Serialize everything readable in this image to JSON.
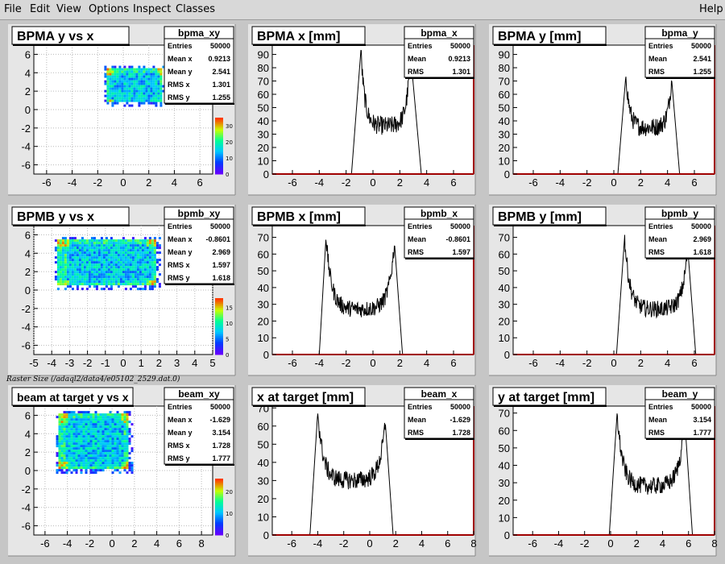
{
  "menu": {
    "file": "File",
    "edit": "Edit",
    "view": "View",
    "options": "Options",
    "inspect": "Inspect",
    "classes": "Classes",
    "help": "Help"
  },
  "caption": "Raster Size (/adaql2/data4/e05102_2529.dat.0)",
  "stat_labels": {
    "entries": "Entries",
    "mean_x": "Mean x",
    "mean_y": "Mean y",
    "rms_x": "RMS x",
    "rms_y": "RMS y",
    "mean": "Mean",
    "rms": "RMS"
  },
  "colors": {
    "pad_bg": "#e6e6e6",
    "frame_bg": "#ffffff",
    "axis_red": "#a00000",
    "hist": "#000000"
  },
  "chart_data": [
    {
      "type": "heatmap",
      "title": "BPMA y vs x",
      "stats_name": "bpma_xy",
      "stats": {
        "entries": "50000",
        "mean_x": "0.9213",
        "mean_y": "2.541",
        "rms_x": "1.301",
        "rms_y": "1.255"
      },
      "xlim": [
        -7,
        7
      ],
      "ylim": [
        -7,
        7
      ],
      "xticks": [
        -6,
        -4,
        -2,
        0,
        2,
        4,
        6
      ],
      "yticks": [
        -6,
        -4,
        -2,
        0,
        2,
        4,
        6
      ],
      "region": {
        "x": [
          -1.3,
          3.2
        ],
        "y": [
          0.6,
          4.5
        ]
      },
      "zticks": [
        0,
        10,
        20,
        30
      ],
      "zmax": 35,
      "grid": true
    },
    {
      "type": "histogram",
      "title": "BPMA x [mm]",
      "stats_name": "bpma_x",
      "stats": {
        "entries": "50000",
        "mean": "0.9213",
        "rms": "1.301"
      },
      "xlim": [
        -7.5,
        7.5
      ],
      "ylim": [
        0,
        97
      ],
      "xticks": [
        -6,
        -4,
        -2,
        0,
        2,
        4,
        6
      ],
      "yticks": [
        0,
        10,
        20,
        30,
        40,
        50,
        60,
        70,
        80,
        90
      ],
      "profile": {
        "rise": [
          -1.6,
          -0.9
        ],
        "fall": [
          2.8,
          3.6
        ],
        "peak_left": 93,
        "peak_right": 90,
        "valley": 36,
        "noise": 7
      }
    },
    {
      "type": "histogram",
      "title": "BPMA y [mm]",
      "stats_name": "bpma_y",
      "stats": {
        "entries": "50000",
        "mean": "2.541",
        "rms": "1.255"
      },
      "xlim": [
        -7.5,
        7.5
      ],
      "ylim": [
        0,
        97
      ],
      "xticks": [
        -6,
        -4,
        -2,
        0,
        2,
        4,
        6
      ],
      "yticks": [
        0,
        10,
        20,
        30,
        40,
        50,
        60,
        70,
        80,
        90
      ],
      "profile": {
        "rise": [
          0.3,
          0.9
        ],
        "fall": [
          4.3,
          4.9
        ],
        "peak_left": 75,
        "peak_right": 72,
        "valley": 35,
        "noise": 7
      }
    },
    {
      "type": "heatmap",
      "title": "BPMB y vs x",
      "stats_name": "bpmb_xy",
      "stats": {
        "entries": "50000",
        "mean_x": "-0.8601",
        "mean_y": "2.969",
        "rms_x": "1.597",
        "rms_y": "1.618"
      },
      "xlim": [
        -5,
        5
      ],
      "ylim": [
        -7,
        7
      ],
      "xticks": [
        -5,
        -4,
        -3,
        -2,
        -1,
        0,
        1,
        2,
        3,
        4,
        5
      ],
      "yticks": [
        -6,
        -4,
        -2,
        0,
        2,
        4,
        6
      ],
      "region": {
        "x": [
          -3.7,
          1.9
        ],
        "y": [
          0.4,
          5.5
        ]
      },
      "zticks": [
        0,
        5,
        10,
        15
      ],
      "zmax": 18,
      "grid": true
    },
    {
      "type": "histogram",
      "title": "BPMB x [mm]",
      "stats_name": "bpmb_x",
      "stats": {
        "entries": "50000",
        "mean": "-0.8601",
        "rms": "1.597"
      },
      "xlim": [
        -7.5,
        7.5
      ],
      "ylim": [
        0,
        77
      ],
      "xticks": [
        -6,
        -4,
        -2,
        0,
        2,
        4,
        6
      ],
      "yticks": [
        0,
        10,
        20,
        30,
        40,
        50,
        60,
        70
      ],
      "profile": {
        "rise": [
          -4.0,
          -3.5
        ],
        "fall": [
          1.6,
          2.2
        ],
        "peak_left": 70,
        "peak_right": 67,
        "valley": 27,
        "noise": 5
      }
    },
    {
      "type": "histogram",
      "title": "BPMB y [mm]",
      "stats_name": "bpmb_y",
      "stats": {
        "entries": "50000",
        "mean": "2.969",
        "rms": "1.618"
      },
      "xlim": [
        -7.5,
        7.5
      ],
      "ylim": [
        0,
        77
      ],
      "xticks": [
        -6,
        -4,
        -2,
        0,
        2,
        4,
        6
      ],
      "yticks": [
        0,
        10,
        20,
        30,
        40,
        50,
        60,
        70
      ],
      "profile": {
        "rise": [
          0.2,
          0.8
        ],
        "fall": [
          5.5,
          6.1
        ],
        "peak_left": 70,
        "peak_right": 64,
        "valley": 27,
        "noise": 5
      }
    },
    {
      "type": "heatmap",
      "title": "beam at target y vs x",
      "stats_name": "beam_xy",
      "stats": {
        "entries": "50000",
        "mean_x": "-1.629",
        "mean_y": "3.154",
        "rms_x": "1.728",
        "rms_y": "1.777"
      },
      "xlim": [
        -7,
        9
      ],
      "ylim": [
        -7,
        7
      ],
      "xticks": [
        -6,
        -4,
        -2,
        0,
        2,
        4,
        6,
        8
      ],
      "yticks": [
        -6,
        -4,
        -2,
        0,
        2,
        4,
        6
      ],
      "region": {
        "x": [
          -4.8,
          1.5
        ],
        "y": [
          0.1,
          6.2
        ]
      },
      "zticks": [
        0,
        10,
        20
      ],
      "zmax": 26,
      "grid": true
    },
    {
      "type": "histogram",
      "title": "x at target [mm]",
      "stats_name": "beam_x",
      "stats": {
        "entries": "50000",
        "mean": "-1.629",
        "rms": "1.728"
      },
      "xlim": [
        -7.5,
        8
      ],
      "ylim": [
        0,
        71
      ],
      "xticks": [
        -6,
        -4,
        -2,
        0,
        2,
        4,
        6,
        8
      ],
      "yticks": [
        0,
        10,
        20,
        30,
        40,
        50,
        60,
        70
      ],
      "profile": {
        "rise": [
          -4.6,
          -4.0
        ],
        "fall": [
          1.2,
          1.8
        ],
        "peak_left": 68,
        "peak_right": 62,
        "valley": 30,
        "noise": 5
      }
    },
    {
      "type": "histogram",
      "title": "y at target [mm]",
      "stats_name": "beam_y",
      "stats": {
        "entries": "50000",
        "mean": "3.154",
        "rms": "1.777"
      },
      "xlim": [
        -7.5,
        8
      ],
      "ylim": [
        0,
        74
      ],
      "xticks": [
        -6,
        -4,
        -2,
        0,
        2,
        4,
        6,
        8
      ],
      "yticks": [
        0,
        10,
        20,
        30,
        40,
        50,
        60,
        70
      ],
      "profile": {
        "rise": [
          -0.1,
          0.5
        ],
        "fall": [
          5.7,
          6.3
        ],
        "peak_left": 70,
        "peak_right": 67,
        "valley": 28,
        "noise": 5
      }
    }
  ]
}
